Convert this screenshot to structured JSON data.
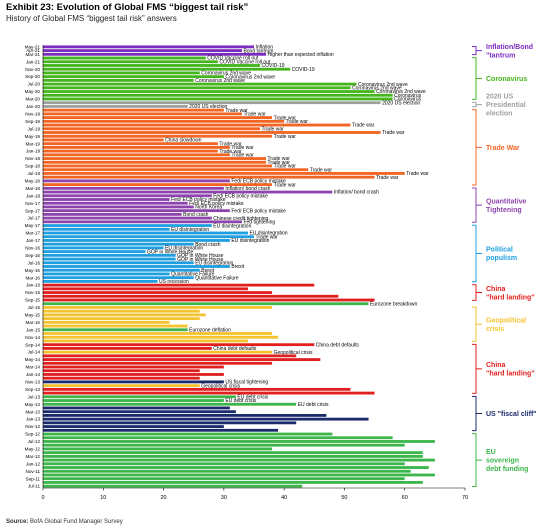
{
  "title": "Exhibit 23: Evolution of Global FMS “biggest tail risk”",
  "subtitle": "History of Global FMS “biggest tail risk” answers",
  "source": {
    "label": "Source:",
    "text": "BofA Global Fund Manager Survey"
  },
  "chart_data": {
    "type": "bar",
    "orientation": "horizontal",
    "xlim": [
      0,
      70
    ],
    "xticks": [
      0,
      10,
      20,
      30,
      40,
      50,
      60,
      70
    ],
    "colors": {
      "Inflation/Bond tantrum": "#7b2cbf",
      "Coronavirus": "#44b51c",
      "2020 US Presidential election": "#a0a0a0",
      "Trade War": "#f26522",
      "Quantitative Tightening": "#8e44ad",
      "Political populism": "#1f9fe0",
      "China hard landing": "#e02020",
      "Geopolitical crisis": "#f5c330",
      "US fiscal cliff": "#1b2a6b",
      "EU sovereign debt funding": "#3cb54a"
    },
    "bars": [
      {
        "m": "May-21",
        "v": 35,
        "g": "Inflation/Bond tantrum",
        "t": "Inflation"
      },
      {
        "m": "Apr-21",
        "v": 33,
        "g": "Inflation/Bond tantrum",
        "t": "Bond tantrum"
      },
      {
        "m": "Mar-21",
        "v": 37,
        "g": "Inflation/Bond tantrum",
        "t": "Higher than expected inflation"
      },
      {
        "m": "Feb-21",
        "v": 27,
        "g": "Coronavirus",
        "t": "COVID Vaccine roll out"
      },
      {
        "m": "Jan-21",
        "v": 29,
        "g": "Coronavirus",
        "t": "COVID Vaccine roll out"
      },
      {
        "m": "Dec-20",
        "v": 36,
        "g": "Coronavirus",
        "t": "COVID-19"
      },
      {
        "m": "Nov-20",
        "v": 41,
        "g": "Coronavirus",
        "t": "COVID-19"
      },
      {
        "m": "Oct-20",
        "v": 26,
        "g": "Coronavirus",
        "t": "Coronavirus 2nd wave"
      },
      {
        "m": "Sep-20",
        "v": 30,
        "g": "Coronavirus",
        "t": "Coronavirus 2nd wave"
      },
      {
        "m": "Aug-20",
        "v": 25,
        "g": "Coronavirus",
        "t": "Coronavirus 2nd wave"
      },
      {
        "m": "Jul-20",
        "v": 52,
        "g": "Coronavirus",
        "t": "Coronavirus 2nd wave"
      },
      {
        "m": "Jun-20",
        "v": 51,
        "g": "Coronavirus",
        "t": "Coronavirus 2nd wave"
      },
      {
        "m": "May-20",
        "v": 55,
        "g": "Coronavirus",
        "t": "Coronavirus 2nd wave"
      },
      {
        "m": "Apr-20",
        "v": 58,
        "g": "Coronavirus",
        "t": "Coronavirus"
      },
      {
        "m": "Mar-20",
        "v": 58,
        "g": "Coronavirus",
        "t": "Coronavirus"
      },
      {
        "m": "Feb-20",
        "v": 56,
        "g": "2020 US Presidential election",
        "t": "2020 US election"
      },
      {
        "m": "Jan-20",
        "v": 24,
        "g": "2020 US Presidential election",
        "t": "2020 US election"
      },
      {
        "m": "Dec-19",
        "v": 30,
        "g": "Trade War",
        "t": "Trade war"
      },
      {
        "m": "Nov-19",
        "v": 33,
        "g": "Trade War",
        "t": "Trade war"
      },
      {
        "m": "Oct-19",
        "v": 38,
        "g": "Trade War",
        "t": "Trade war"
      },
      {
        "m": "Sep-19",
        "v": 40,
        "g": "Trade War",
        "t": "Trade war"
      },
      {
        "m": "Aug-19",
        "v": 51,
        "g": "Trade War",
        "t": "Trade war"
      },
      {
        "m": "Jul-19",
        "v": 36,
        "g": "Trade War",
        "t": "Trade war"
      },
      {
        "m": "Jun-19",
        "v": 56,
        "g": "Trade War",
        "t": "Trade war"
      },
      {
        "m": "May-19",
        "v": 38,
        "g": "Trade War",
        "t": "Trade war"
      },
      {
        "m": "Apr-19",
        "v": 20,
        "g": "Trade War",
        "t": "China slowdown"
      },
      {
        "m": "Mar-19",
        "v": 29,
        "g": "Trade War",
        "t": "Trade war"
      },
      {
        "m": "Feb-19",
        "v": 31,
        "g": "Trade War",
        "t": "Trade war"
      },
      {
        "m": "Jan-19",
        "v": 29,
        "g": "Trade War",
        "t": "Trade war"
      },
      {
        "m": "Dec-18",
        "v": 31,
        "g": "Trade War",
        "t": "Trade war"
      },
      {
        "m": "Nov-18",
        "v": 37,
        "g": "Trade War",
        "t": "Trade war"
      },
      {
        "m": "Oct-18",
        "v": 37,
        "g": "Trade War",
        "t": "Trade war"
      },
      {
        "m": "Sep-18",
        "v": 38,
        "g": "Trade War",
        "t": "Trade war"
      },
      {
        "m": "Aug-18",
        "v": 44,
        "g": "Trade War",
        "t": "Trade war"
      },
      {
        "m": "Jul-18",
        "v": 60,
        "g": "Trade War",
        "t": "Trade war"
      },
      {
        "m": "Jun-18",
        "v": 55,
        "g": "Trade War",
        "t": "Trade war"
      },
      {
        "m": "May-18",
        "v": 31,
        "g": "Quantitative Tightening",
        "t": "Fed/ ECB policy mistake"
      },
      {
        "m": "Apr-18",
        "v": 38,
        "g": "Trade War",
        "t": "Trade war"
      },
      {
        "m": "Mar-18",
        "v": 30,
        "g": "Quantitative Tightening",
        "t": "Inflation/ bond crash"
      },
      {
        "m": "Feb-18",
        "v": 48,
        "g": "Quantitative Tightening",
        "t": "Inflation/ bond crash"
      },
      {
        "m": "Jan-18",
        "v": 28,
        "g": "Quantitative Tightening",
        "t": "Fed/ ECB policy mistake"
      },
      {
        "m": "Dec-17",
        "v": 21,
        "g": "Quantitative Tightening",
        "t": "Fed/ ECB policy mistake"
      },
      {
        "m": "Nov-17",
        "v": 24,
        "g": "Quantitative Tightening",
        "t": "Fed/ ECB policy mistake"
      },
      {
        "m": "Oct-17",
        "v": 25,
        "g": "Quantitative Tightening",
        "t": "North Korea"
      },
      {
        "m": "Sep-17",
        "v": 31,
        "g": "Quantitative Tightening",
        "t": "Fed/ ECB policy mistake"
      },
      {
        "m": "Aug-17",
        "v": 23,
        "g": "Quantitative Tightening",
        "t": "Bond crash"
      },
      {
        "m": "Jul-17",
        "v": 28,
        "g": "Quantitative Tightening",
        "t": "Chinese credit tightening"
      },
      {
        "m": "Jun-17",
        "v": 33,
        "g": "Quantitative Tightening",
        "t": "Fed tightening"
      },
      {
        "m": "May-17",
        "v": 28,
        "g": "Political populism",
        "t": "EU disintegration"
      },
      {
        "m": "Apr-17",
        "v": 21,
        "g": "Political populism",
        "t": "EU disintegration"
      },
      {
        "m": "Mar-17",
        "v": 34,
        "g": "Political populism",
        "t": "EU disintegration"
      },
      {
        "m": "Feb-17",
        "v": 35,
        "g": "Political populism",
        "t": "Trade war"
      },
      {
        "m": "Jan-17",
        "v": 31,
        "g": "Political populism",
        "t": "EU disintegration"
      },
      {
        "m": "Dec-16",
        "v": 25,
        "g": "Political populism",
        "t": "Bond crash"
      },
      {
        "m": "Nov-16",
        "v": 20,
        "g": "Political populism",
        "t": "EU disintegration"
      },
      {
        "m": "Oct-16",
        "v": 17,
        "g": "Political populism",
        "t": "GOP in White House"
      },
      {
        "m": "Sep-16",
        "v": 22,
        "g": "Political populism",
        "t": "GOP in White House"
      },
      {
        "m": "Aug-16",
        "v": 22,
        "g": "Political populism",
        "t": "GOP in White House"
      },
      {
        "m": "Jul-16",
        "v": 25,
        "g": "Political populism",
        "t": "EU disintegration"
      },
      {
        "m": "Jun-16",
        "v": 31,
        "g": "Political populism",
        "t": "Brexit"
      },
      {
        "m": "May-16",
        "v": 26,
        "g": "Political populism",
        "t": "Brexit"
      },
      {
        "m": "Apr-16",
        "v": 21,
        "g": "Political populism",
        "t": "Quantitative Failure"
      },
      {
        "m": "Mar-16",
        "v": 25,
        "g": "Political populism",
        "t": "Quantitative Failure"
      },
      {
        "m": "Feb-16",
        "v": 19,
        "g": "Political populism",
        "t": "US recession"
      },
      {
        "m": "Jan-16",
        "v": 45,
        "g": "China hard landing",
        "t": ""
      },
      {
        "m": "Dec-15",
        "v": 34,
        "g": "China hard landing",
        "t": ""
      },
      {
        "m": "Nov-15",
        "v": 38,
        "g": "China hard landing",
        "t": ""
      },
      {
        "m": "Oct-15",
        "v": 49,
        "g": "China hard landing",
        "t": ""
      },
      {
        "m": "Sep-15",
        "v": 55,
        "g": "China hard landing",
        "t": ""
      },
      {
        "m": "Aug-15",
        "v": 54,
        "g": "EU sovereign debt funding",
        "t": "Eurozone breakdown"
      },
      {
        "m": "Jul-15",
        "v": 38,
        "g": "Geopolitical crisis",
        "t": ""
      },
      {
        "m": "Jun-15",
        "v": 26,
        "g": "Geopolitical crisis",
        "t": ""
      },
      {
        "m": "May-15",
        "v": 27,
        "g": "Geopolitical crisis",
        "t": ""
      },
      {
        "m": "Apr-15",
        "v": 26,
        "g": "Geopolitical crisis",
        "t": ""
      },
      {
        "m": "Mar-15",
        "v": 21,
        "g": "Geopolitical crisis",
        "t": ""
      },
      {
        "m": "Feb-15",
        "v": 24,
        "g": "Geopolitical crisis",
        "t": ""
      },
      {
        "m": "Jan-15",
        "v": 24,
        "g": "EU sovereign debt funding",
        "t": "Eurozone deflation"
      },
      {
        "m": "Dec-14",
        "v": 38,
        "g": "Geopolitical crisis",
        "t": ""
      },
      {
        "m": "Nov-14",
        "v": 39,
        "g": "Geopolitical crisis",
        "t": ""
      },
      {
        "m": "Oct-14",
        "v": 34,
        "g": "Geopolitical crisis",
        "t": ""
      },
      {
        "m": "Sep-14",
        "v": 45,
        "g": "China hard landing",
        "t": "China debt defaults"
      },
      {
        "m": "Aug-14",
        "v": 28,
        "g": "China hard landing",
        "t": "China debt defaults"
      },
      {
        "m": "Jul-14",
        "v": 38,
        "g": "Geopolitical crisis",
        "t": "Geopolitical crisis"
      },
      {
        "m": "Jun-14",
        "v": 42,
        "g": "China hard landing",
        "t": ""
      },
      {
        "m": "May-14",
        "v": 46,
        "g": "China hard landing",
        "t": ""
      },
      {
        "m": "Apr-14",
        "v": 38,
        "g": "China hard landing",
        "t": ""
      },
      {
        "m": "Mar-14",
        "v": 30,
        "g": "China hard landing",
        "t": ""
      },
      {
        "m": "Feb-14",
        "v": 26,
        "g": "China hard landing",
        "t": ""
      },
      {
        "m": "Jan-14",
        "v": 30,
        "g": "China hard landing",
        "t": ""
      },
      {
        "m": "Dec-13",
        "v": 26,
        "g": "China hard landing",
        "t": ""
      },
      {
        "m": "Nov-13",
        "v": 30,
        "g": "US fiscal cliff",
        "t": "US fiscal tightening"
      },
      {
        "m": "Oct-13",
        "v": 26,
        "g": "Geopolitical crisis",
        "t": "Geopolitical crisis"
      },
      {
        "m": "Sep-13",
        "v": 51,
        "g": "China hard landing",
        "t": ""
      },
      {
        "m": "Aug-13",
        "v": 55,
        "g": "China hard landing",
        "t": ""
      },
      {
        "m": "Jul-13",
        "v": 32,
        "g": "EU sovereign debt funding",
        "t": "EU debt crisis"
      },
      {
        "m": "Jun-13",
        "v": 30,
        "g": "EU sovereign debt funding",
        "t": "EU debt crisis"
      },
      {
        "m": "May-13",
        "v": 42,
        "g": "EU sovereign debt funding",
        "t": "EU debt crisis"
      },
      {
        "m": "Apr-13",
        "v": 31,
        "g": "US fiscal cliff",
        "t": ""
      },
      {
        "m": "Mar-13",
        "v": 32,
        "g": "US fiscal cliff",
        "t": ""
      },
      {
        "m": "Feb-13",
        "v": 47,
        "g": "US fiscal cliff",
        "t": ""
      },
      {
        "m": "Jan-13",
        "v": 54,
        "g": "US fiscal cliff",
        "t": ""
      },
      {
        "m": "Dec-12",
        "v": 42,
        "g": "US fiscal cliff",
        "t": ""
      },
      {
        "m": "Nov-12",
        "v": 30,
        "g": "US fiscal cliff",
        "t": ""
      },
      {
        "m": "Oct-12",
        "v": 39,
        "g": "US fiscal cliff",
        "t": ""
      },
      {
        "m": "Sep-12",
        "v": 48,
        "g": "EU sovereign debt funding",
        "t": ""
      },
      {
        "m": "Aug-12",
        "v": 58,
        "g": "EU sovereign debt funding",
        "t": ""
      },
      {
        "m": "Jul-12",
        "v": 65,
        "g": "EU sovereign debt funding",
        "t": ""
      },
      {
        "m": "Jun-12",
        "v": 60,
        "g": "EU sovereign debt funding",
        "t": ""
      },
      {
        "m": "May-12",
        "v": 38,
        "g": "EU sovereign debt funding",
        "t": ""
      },
      {
        "m": "Apr-12",
        "v": 63,
        "g": "EU sovereign debt funding",
        "t": ""
      },
      {
        "m": "Mar-12",
        "v": 63,
        "g": "EU sovereign debt funding",
        "t": ""
      },
      {
        "m": "Feb-12",
        "v": 65,
        "g": "EU sovereign debt funding",
        "t": ""
      },
      {
        "m": "Jan-12",
        "v": 60,
        "g": "EU sovereign debt funding",
        "t": ""
      },
      {
        "m": "Dec-11",
        "v": 64,
        "g": "EU sovereign debt funding",
        "t": ""
      },
      {
        "m": "Nov-11",
        "v": 61,
        "g": "EU sovereign debt funding",
        "t": ""
      },
      {
        "m": "Oct-11",
        "v": 65,
        "g": "EU sovereign debt funding",
        "t": ""
      },
      {
        "m": "Sep-11",
        "v": 60,
        "g": "EU sovereign debt funding",
        "t": ""
      },
      {
        "m": "Aug-11",
        "v": 63,
        "g": "EU sovereign debt funding",
        "t": ""
      },
      {
        "m": "Jul-11",
        "v": 43,
        "g": "EU sovereign debt funding",
        "t": ""
      }
    ],
    "ylabels": [
      "May-21",
      "Apr-21",
      "Mar-21",
      "Jan-21",
      "Nov-20",
      "Sep-20",
      "Jul-20",
      "May-20",
      "Mar-20",
      "Jan-20",
      "Nov-19",
      "Sep-19",
      "Jul-19",
      "May-19",
      "Mar-19",
      "Jan-19",
      "Nov-18",
      "Sep-18",
      "Jul-18",
      "May-18",
      "Mar-18",
      "Jan-18",
      "Nov-17",
      "Sep-17",
      "Jul-17",
      "May-17",
      "Mar-17",
      "Jan-17",
      "Nov-16",
      "Sep-16",
      "Jul-16",
      "May-16",
      "Mar-16",
      "Jan-16",
      "Nov-15",
      "Sep-15",
      "Jul-15",
      "May-15",
      "Mar-15",
      "Jan-15",
      "Nov-14",
      "Sep-14",
      "Jul-14",
      "May-14",
      "Mar-14",
      "Jan-14",
      "Nov-13",
      "Sep-13",
      "Jul-13",
      "May-13",
      "Mar-13",
      "Jan-13",
      "Nov-12",
      "Sep-12",
      "Jul-12",
      "May-12",
      "Mar-12",
      "Jan-12",
      "Nov-11",
      "Sep-11",
      "Jul-11"
    ],
    "groups": [
      {
        "name": "Inflation/Bond tantrum",
        "lines": [
          "Inflation/Bond",
          "\"tantrum"
        ],
        "from": "May-21",
        "to": "Mar-21"
      },
      {
        "name": "Coronavirus",
        "lines": [
          "Coronavirus"
        ],
        "from": "Feb-21",
        "to": "Mar-20"
      },
      {
        "name": "2020 US Presidential election",
        "lines": [
          "2020 US",
          "Presidential",
          "election"
        ],
        "from": "Feb-20",
        "to": "Jan-20"
      },
      {
        "name": "Trade War",
        "lines": [
          "Trade War"
        ],
        "from": "Dec-19",
        "to": "Apr-18"
      },
      {
        "name": "Quantitative Tightening",
        "lines": [
          "Quantitative",
          "Tightening"
        ],
        "from": "Mar-18",
        "to": "Jun-17"
      },
      {
        "name": "Political populism",
        "lines": [
          "Political",
          "populism"
        ],
        "from": "May-17",
        "to": "Feb-16"
      },
      {
        "name": "China hard landing",
        "lines": [
          "China",
          "\"hard landing\""
        ],
        "from": "Jan-16",
        "to": "Sep-15"
      },
      {
        "name": "Geopolitical crisis",
        "lines": [
          "Geopolitical",
          "crisis"
        ],
        "from": "Jul-15",
        "to": "Oct-14"
      },
      {
        "name": "China hard landing",
        "lines": [
          "China",
          "\"hard landing\""
        ],
        "from": "Sep-14",
        "to": "Aug-13"
      },
      {
        "name": "US fiscal cliff",
        "lines": [
          "US \"fiscal cliff\""
        ],
        "from": "Jul-13",
        "to": "Oct-12"
      },
      {
        "name": "EU sovereign debt funding",
        "lines": [
          "EU",
          "sovereign",
          "debt funding"
        ],
        "from": "Sep-12",
        "to": "Jul-11"
      }
    ]
  }
}
